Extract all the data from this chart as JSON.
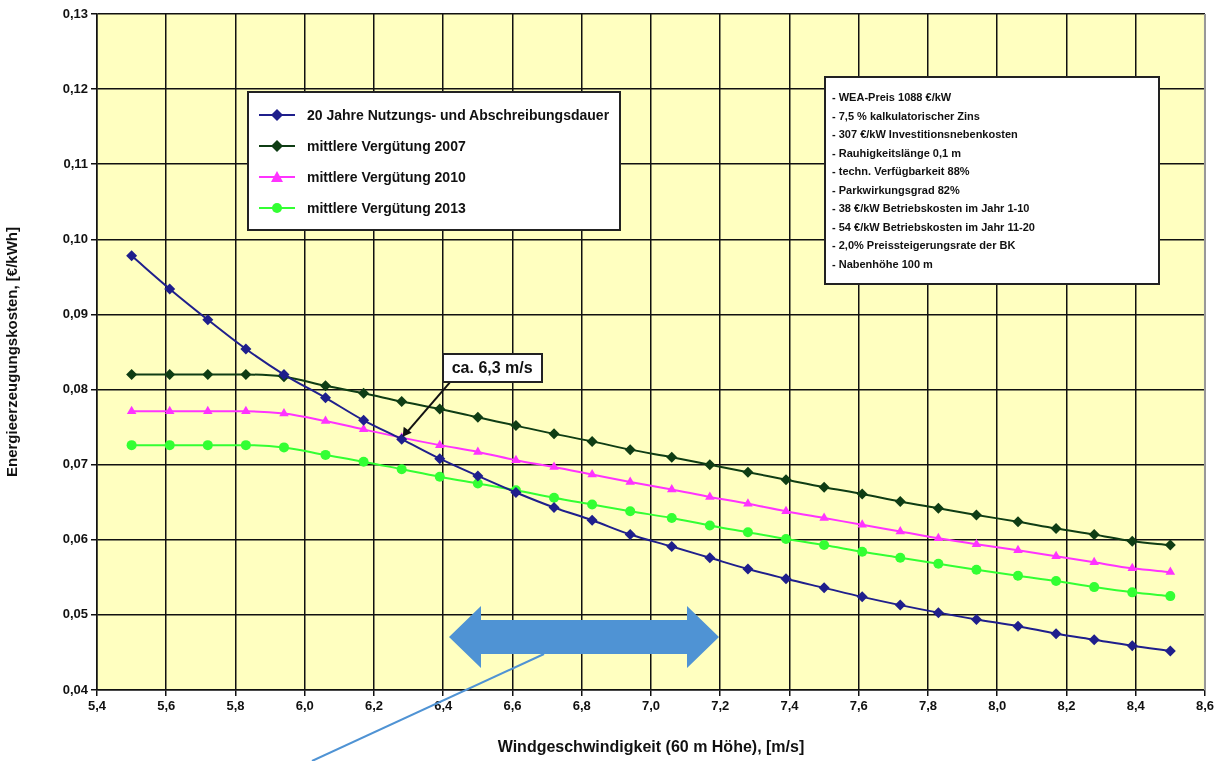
{
  "chart_data": {
    "type": "line",
    "xlabel": "Windgeschwindigkeit (60 m Höhe), [m/s]",
    "ylabel": "Energieerzeugungskosten, [€/kWh]",
    "x": [
      5.5,
      5.61,
      5.72,
      5.83,
      5.94,
      6.06,
      6.17,
      6.28,
      6.39,
      6.5,
      6.61,
      6.72,
      6.83,
      6.94,
      7.06,
      7.17,
      7.28,
      7.39,
      7.5,
      7.61,
      7.72,
      7.83,
      7.94,
      8.06,
      8.17,
      8.28,
      8.39,
      8.5
    ],
    "series": [
      {
        "name": "20 Jahre Nutzungs- und Abschreibungsdauer",
        "color": "#1f1f8c",
        "marker": "diamond",
        "values": [
          0.0978,
          0.0934,
          0.0893,
          0.0854,
          0.082,
          0.0789,
          0.0759,
          0.0734,
          0.0708,
          0.0685,
          0.0663,
          0.0643,
          0.0626,
          0.0607,
          0.0591,
          0.0576,
          0.0561,
          0.0548,
          0.0536,
          0.0524,
          0.0513,
          0.0503,
          0.0494,
          0.0485,
          0.0475,
          0.0467,
          0.0459,
          0.0452
        ]
      },
      {
        "name": "mittlere Vergütung 2007",
        "color": "#0f3d14",
        "marker": "diamond",
        "values": [
          0.082,
          0.082,
          0.082,
          0.082,
          0.0817,
          0.0805,
          0.0795,
          0.0784,
          0.0774,
          0.0763,
          0.0752,
          0.0741,
          0.0731,
          0.072,
          0.071,
          0.07,
          0.069,
          0.068,
          0.067,
          0.0661,
          0.0651,
          0.0642,
          0.0633,
          0.0624,
          0.0615,
          0.0607,
          0.0598,
          0.0593
        ]
      },
      {
        "name": "mittlere Vergütung 2010",
        "color": "#ff33ff",
        "marker": "triangle",
        "values": [
          0.0771,
          0.0771,
          0.0771,
          0.0771,
          0.0768,
          0.0758,
          0.0747,
          0.0736,
          0.0726,
          0.0717,
          0.0706,
          0.0697,
          0.0687,
          0.0677,
          0.0667,
          0.0657,
          0.0648,
          0.0638,
          0.0629,
          0.062,
          0.0611,
          0.0602,
          0.0594,
          0.0586,
          0.0578,
          0.057,
          0.0562,
          0.0557
        ]
      },
      {
        "name": "mittlere Vergütung 2013",
        "color": "#33ff33",
        "marker": "circle",
        "values": [
          0.0726,
          0.0726,
          0.0726,
          0.0726,
          0.0723,
          0.0713,
          0.0704,
          0.0694,
          0.0684,
          0.0675,
          0.0666,
          0.0656,
          0.0647,
          0.0638,
          0.0629,
          0.0619,
          0.061,
          0.0601,
          0.0593,
          0.0584,
          0.0576,
          0.0568,
          0.056,
          0.0552,
          0.0545,
          0.0537,
          0.053,
          0.0525
        ]
      }
    ],
    "xlim": [
      5.4,
      8.6
    ],
    "xticks": [
      {
        "value": 5.4,
        "label": "5,4"
      },
      {
        "value": 5.6,
        "label": "5,6"
      },
      {
        "value": 5.8,
        "label": "5,8"
      },
      {
        "value": 6.0,
        "label": "6,0"
      },
      {
        "value": 6.2,
        "label": "6,2"
      },
      {
        "value": 6.4,
        "label": "6,4"
      },
      {
        "value": 6.6,
        "label": "6,6"
      },
      {
        "value": 6.8,
        "label": "6,8"
      },
      {
        "value": 7.0,
        "label": "7,0"
      },
      {
        "value": 7.2,
        "label": "7,2"
      },
      {
        "value": 7.4,
        "label": "7,4"
      },
      {
        "value": 7.6,
        "label": "7,6"
      },
      {
        "value": 7.8,
        "label": "7,8"
      },
      {
        "value": 8.0,
        "label": "8,0"
      },
      {
        "value": 8.2,
        "label": "8,2"
      },
      {
        "value": 8.4,
        "label": "8,4"
      },
      {
        "value": 8.6,
        "label": "8,6"
      }
    ],
    "ylim": [
      0.04,
      0.13
    ],
    "yticks": [
      {
        "value": 0.04,
        "label": "0,04"
      },
      {
        "value": 0.05,
        "label": "0,05"
      },
      {
        "value": 0.06,
        "label": "0,06"
      },
      {
        "value": 0.07,
        "label": "0,07"
      },
      {
        "value": 0.08,
        "label": "0,08"
      },
      {
        "value": 0.09,
        "label": "0,09"
      },
      {
        "value": 0.1,
        "label": "0,10"
      },
      {
        "value": 0.11,
        "label": "0,11"
      },
      {
        "value": 0.12,
        "label": "0,12"
      },
      {
        "value": 0.13,
        "label": "0,13"
      }
    ],
    "grid": true,
    "legend": "top left",
    "line_style": "solid",
    "annotations": [
      {
        "text": "ca. 6,3 m/s",
        "x": 6.28,
        "y": 0.0736
      },
      "- WEA-Preis 1088 €/kW",
      "- 7,5 % kalkulatorischer Zins",
      "- 307 €/kW Investitionsnebenkosten",
      "- Rauhigkeitslänge 0,1 m",
      "- techn. Verfügbarkeit 88%",
      "- Parkwirkungsgrad 82%",
      "- 38 €/kW Betriebskosten im Jahr 1-10",
      "- 54 €/kW Betriebskosten im Jahr 11-20",
      "- 2,0% Preissteigerungsrate der BK",
      "- Nabenhöhe 100 m"
    ]
  }
}
